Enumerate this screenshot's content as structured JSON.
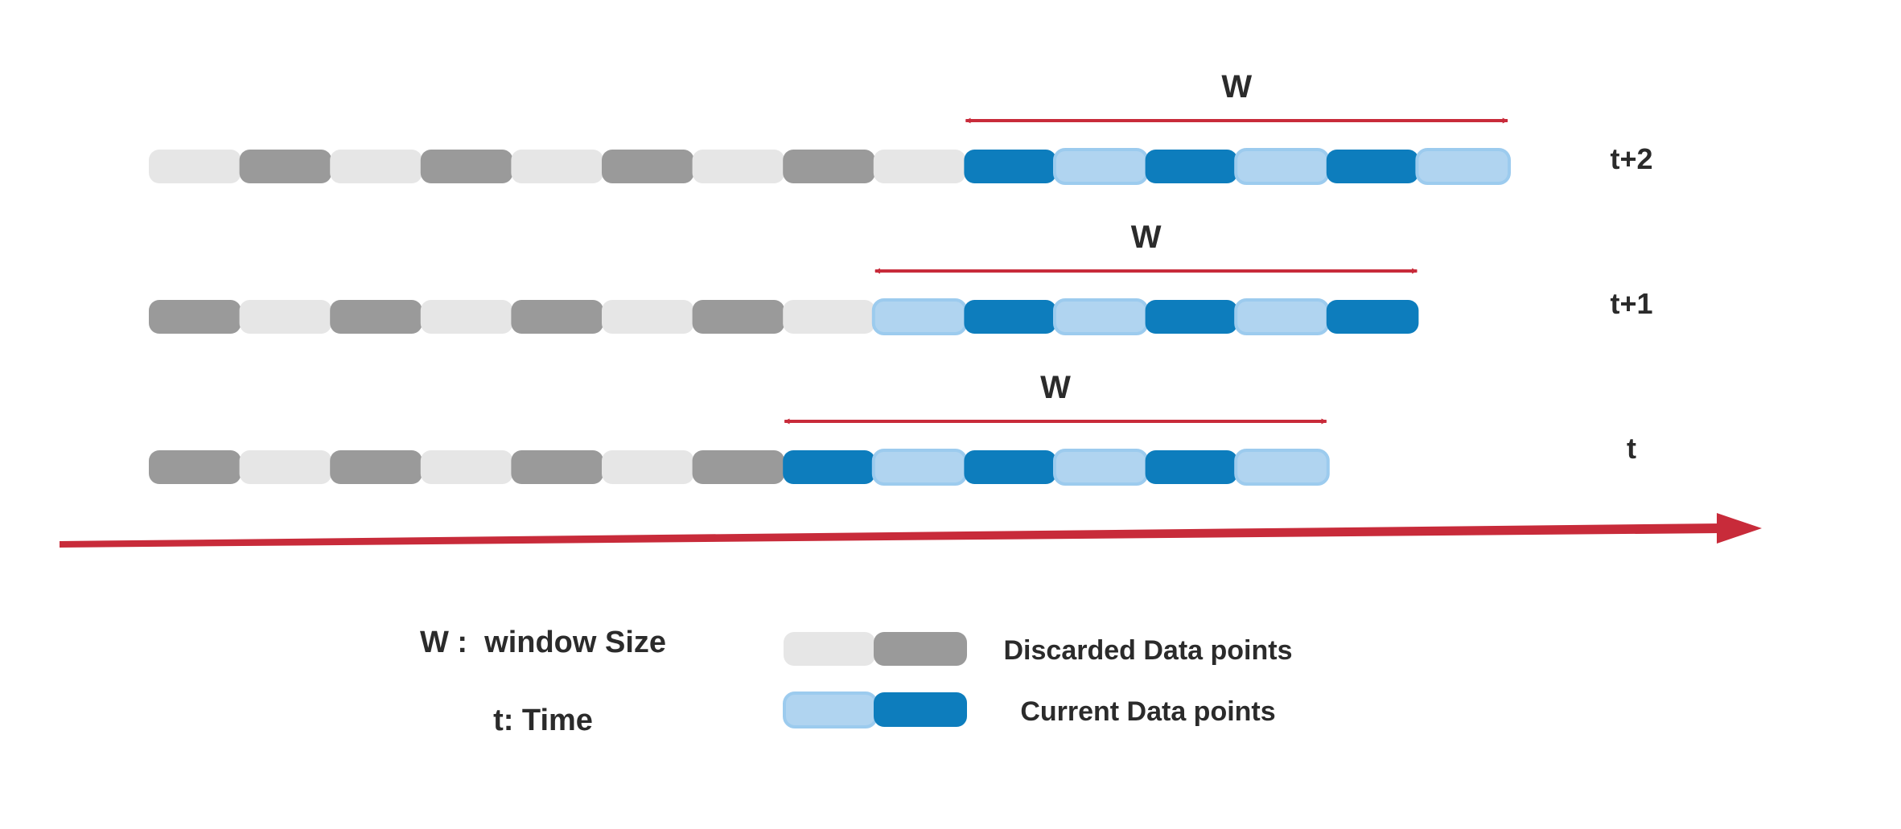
{
  "colors": {
    "discarded_light": "#e6e6e6",
    "discarded_dark": "#9a9a9a",
    "current_light": "#b0d4f0",
    "current_light_border": "#9ccbee",
    "current_dark": "#0d7dbd",
    "arrow": "#c82b3a",
    "text": "#2b2b2b"
  },
  "rows": [
    {
      "time_label": "t+2",
      "window_label": "W",
      "cells": [
        "dl",
        "dd",
        "dl",
        "dd",
        "dl",
        "dd",
        "dl",
        "dd",
        "dl",
        "cd",
        "cl",
        "cd",
        "cl",
        "cd",
        "cl"
      ]
    },
    {
      "time_label": "t+1",
      "window_label": "W",
      "cells": [
        "dd",
        "dl",
        "dd",
        "dl",
        "dd",
        "dl",
        "dd",
        "dl",
        "cl",
        "cd",
        "cl",
        "cd",
        "cl",
        "cd"
      ]
    },
    {
      "time_label": "t",
      "window_label": "W",
      "cells": [
        "dd",
        "dl",
        "dd",
        "dl",
        "dd",
        "dl",
        "dd",
        "cd",
        "cl",
        "cd",
        "cl",
        "cd",
        "cl"
      ]
    }
  ],
  "window_size": 6,
  "legend": {
    "window_def": "W :  window Size",
    "time_def": "t: Time",
    "discarded": "Discarded Data points",
    "current": "Current Data points"
  }
}
